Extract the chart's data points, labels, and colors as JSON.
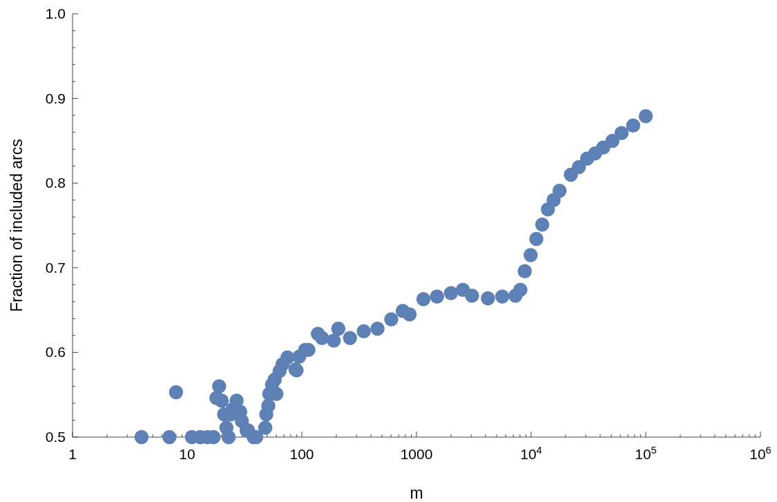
{
  "chart_data": {
    "type": "scatter",
    "xlabel": "m",
    "ylabel": "Fraction of included arcs",
    "log": "x",
    "marker": "circle",
    "grid": false,
    "xlim": [
      1,
      1000000
    ],
    "ylim": [
      0.5,
      1.0
    ],
    "xticks": [
      1,
      {
        "value": 2,
        "label": null
      },
      {
        "value": 3,
        "label": null
      },
      {
        "value": 4,
        "label": null
      },
      {
        "value": 5,
        "label": null
      },
      {
        "value": 6,
        "label": null
      },
      {
        "value": 7,
        "label": null
      },
      {
        "value": 8,
        "label": null
      },
      {
        "value": 9,
        "label": null
      },
      10,
      {
        "value": 20,
        "label": null
      },
      {
        "value": 30,
        "label": null
      },
      {
        "value": 40,
        "label": null
      },
      {
        "value": 50,
        "label": null
      },
      {
        "value": 60,
        "label": null
      },
      {
        "value": 70,
        "label": null
      },
      {
        "value": 80,
        "label": null
      },
      {
        "value": 90,
        "label": null
      },
      100,
      {
        "value": 200,
        "label": null
      },
      {
        "value": 300,
        "label": null
      },
      {
        "value": 400,
        "label": null
      },
      {
        "value": 500,
        "label": null
      },
      {
        "value": 600,
        "label": null
      },
      {
        "value": 700,
        "label": null
      },
      {
        "value": 800,
        "label": null
      },
      {
        "value": 900,
        "label": null
      },
      1000,
      {
        "value": 2000,
        "label": null
      },
      {
        "value": 3000,
        "label": null
      },
      {
        "value": 4000,
        "label": null
      },
      {
        "value": 5000,
        "label": null
      },
      {
        "value": 6000,
        "label": null
      },
      {
        "value": 7000,
        "label": null
      },
      {
        "value": 8000,
        "label": null
      },
      {
        "value": 9000,
        "label": null
      },
      {
        "value": 10000,
        "label": "10$^{4}$"
      },
      {
        "value": 20000,
        "label": null
      },
      {
        "value": 30000,
        "label": null
      },
      {
        "value": 40000,
        "label": null
      },
      {
        "value": 50000,
        "label": null
      },
      {
        "value": 60000,
        "label": null
      },
      {
        "value": 70000,
        "label": null
      },
      {
        "value": 80000,
        "label": null
      },
      {
        "value": 90000,
        "label": null
      },
      {
        "value": 100000,
        "label": "10$^{5}$"
      },
      {
        "value": 200000,
        "label": null
      },
      {
        "value": 300000,
        "label": null
      },
      {
        "value": 400000,
        "label": null
      },
      {
        "value": 500000,
        "label": null
      },
      {
        "value": 600000,
        "label": null
      },
      {
        "value": 700000,
        "label": null
      },
      {
        "value": 800000,
        "label": null
      },
      {
        "value": 900000,
        "label": null
      },
      {
        "value": 1000000,
        "label": "10$^{6}$"
      }
    ],
    "yticks": [
      0.5,
      {
        "value": 0.52,
        "label": null
      },
      {
        "value": 0.54,
        "label": null
      },
      {
        "value": 0.56,
        "label": null
      },
      {
        "value": 0.58,
        "label": null
      },
      0.6,
      {
        "value": 0.62,
        "label": null
      },
      {
        "value": 0.64,
        "label": null
      },
      {
        "value": 0.66,
        "label": null
      },
      {
        "value": 0.68,
        "label": null
      },
      0.7,
      {
        "value": 0.72,
        "label": null
      },
      {
        "value": 0.74,
        "label": null
      },
      {
        "value": 0.76,
        "label": null
      },
      {
        "value": 0.78,
        "label": null
      },
      0.8,
      {
        "value": 0.82,
        "label": null
      },
      {
        "value": 0.84,
        "label": null
      },
      {
        "value": 0.86,
        "label": null
      },
      {
        "value": 0.88,
        "label": null
      },
      0.9,
      {
        "value": 0.92,
        "label": null
      },
      {
        "value": 0.94,
        "label": null
      },
      {
        "value": 0.96,
        "label": null
      },
      {
        "value": 0.98,
        "label": null
      },
      {
        "value": 1,
        "label": "1.0"
      }
    ],
    "series": [
      {
        "color": "#5e81b5",
        "x": [
          4,
          7,
          8,
          11,
          13,
          15,
          17,
          18,
          19,
          20,
          21,
          22,
          23,
          24,
          25,
          27,
          29,
          30,
          33,
          34,
          38,
          40,
          48,
          49,
          51,
          52,
          55,
          58,
          60,
          64,
          68,
          75,
          88,
          90,
          95,
          107,
          114,
          138,
          150,
          190,
          208,
          263,
          347,
          457,
          603,
          759,
          871,
          1150,
          1510,
          2000,
          2540,
          3050,
          4200,
          5600,
          7300,
          8050,
          8800,
          9900,
          11100,
          12500,
          14000,
          15700,
          17700,
          22200,
          26100,
          30800,
          36100,
          42500,
          51200,
          61500,
          77600,
          100000
        ],
        "values": [
          0.5,
          0.5,
          0.553,
          0.5,
          0.5,
          0.5,
          0.5,
          0.546,
          0.56,
          0.543,
          0.527,
          0.511,
          0.5,
          0.527,
          0.533,
          0.543,
          0.53,
          0.519,
          0.508,
          0.508,
          0.5,
          0.5,
          0.511,
          0.527,
          0.537,
          0.551,
          0.562,
          0.568,
          0.551,
          0.578,
          0.586,
          0.594,
          0.58,
          0.579,
          0.595,
          0.603,
          0.603,
          0.622,
          0.617,
          0.614,
          0.628,
          0.617,
          0.625,
          0.628,
          0.639,
          0.649,
          0.645,
          0.663,
          0.666,
          0.67,
          0.674,
          0.667,
          0.664,
          0.666,
          0.667,
          0.674,
          0.696,
          0.715,
          0.734,
          0.751,
          0.769,
          0.78,
          0.791,
          0.81,
          0.819,
          0.829,
          0.835,
          0.842,
          0.85,
          0.859,
          0.868,
          0.879
        ]
      }
    ]
  }
}
